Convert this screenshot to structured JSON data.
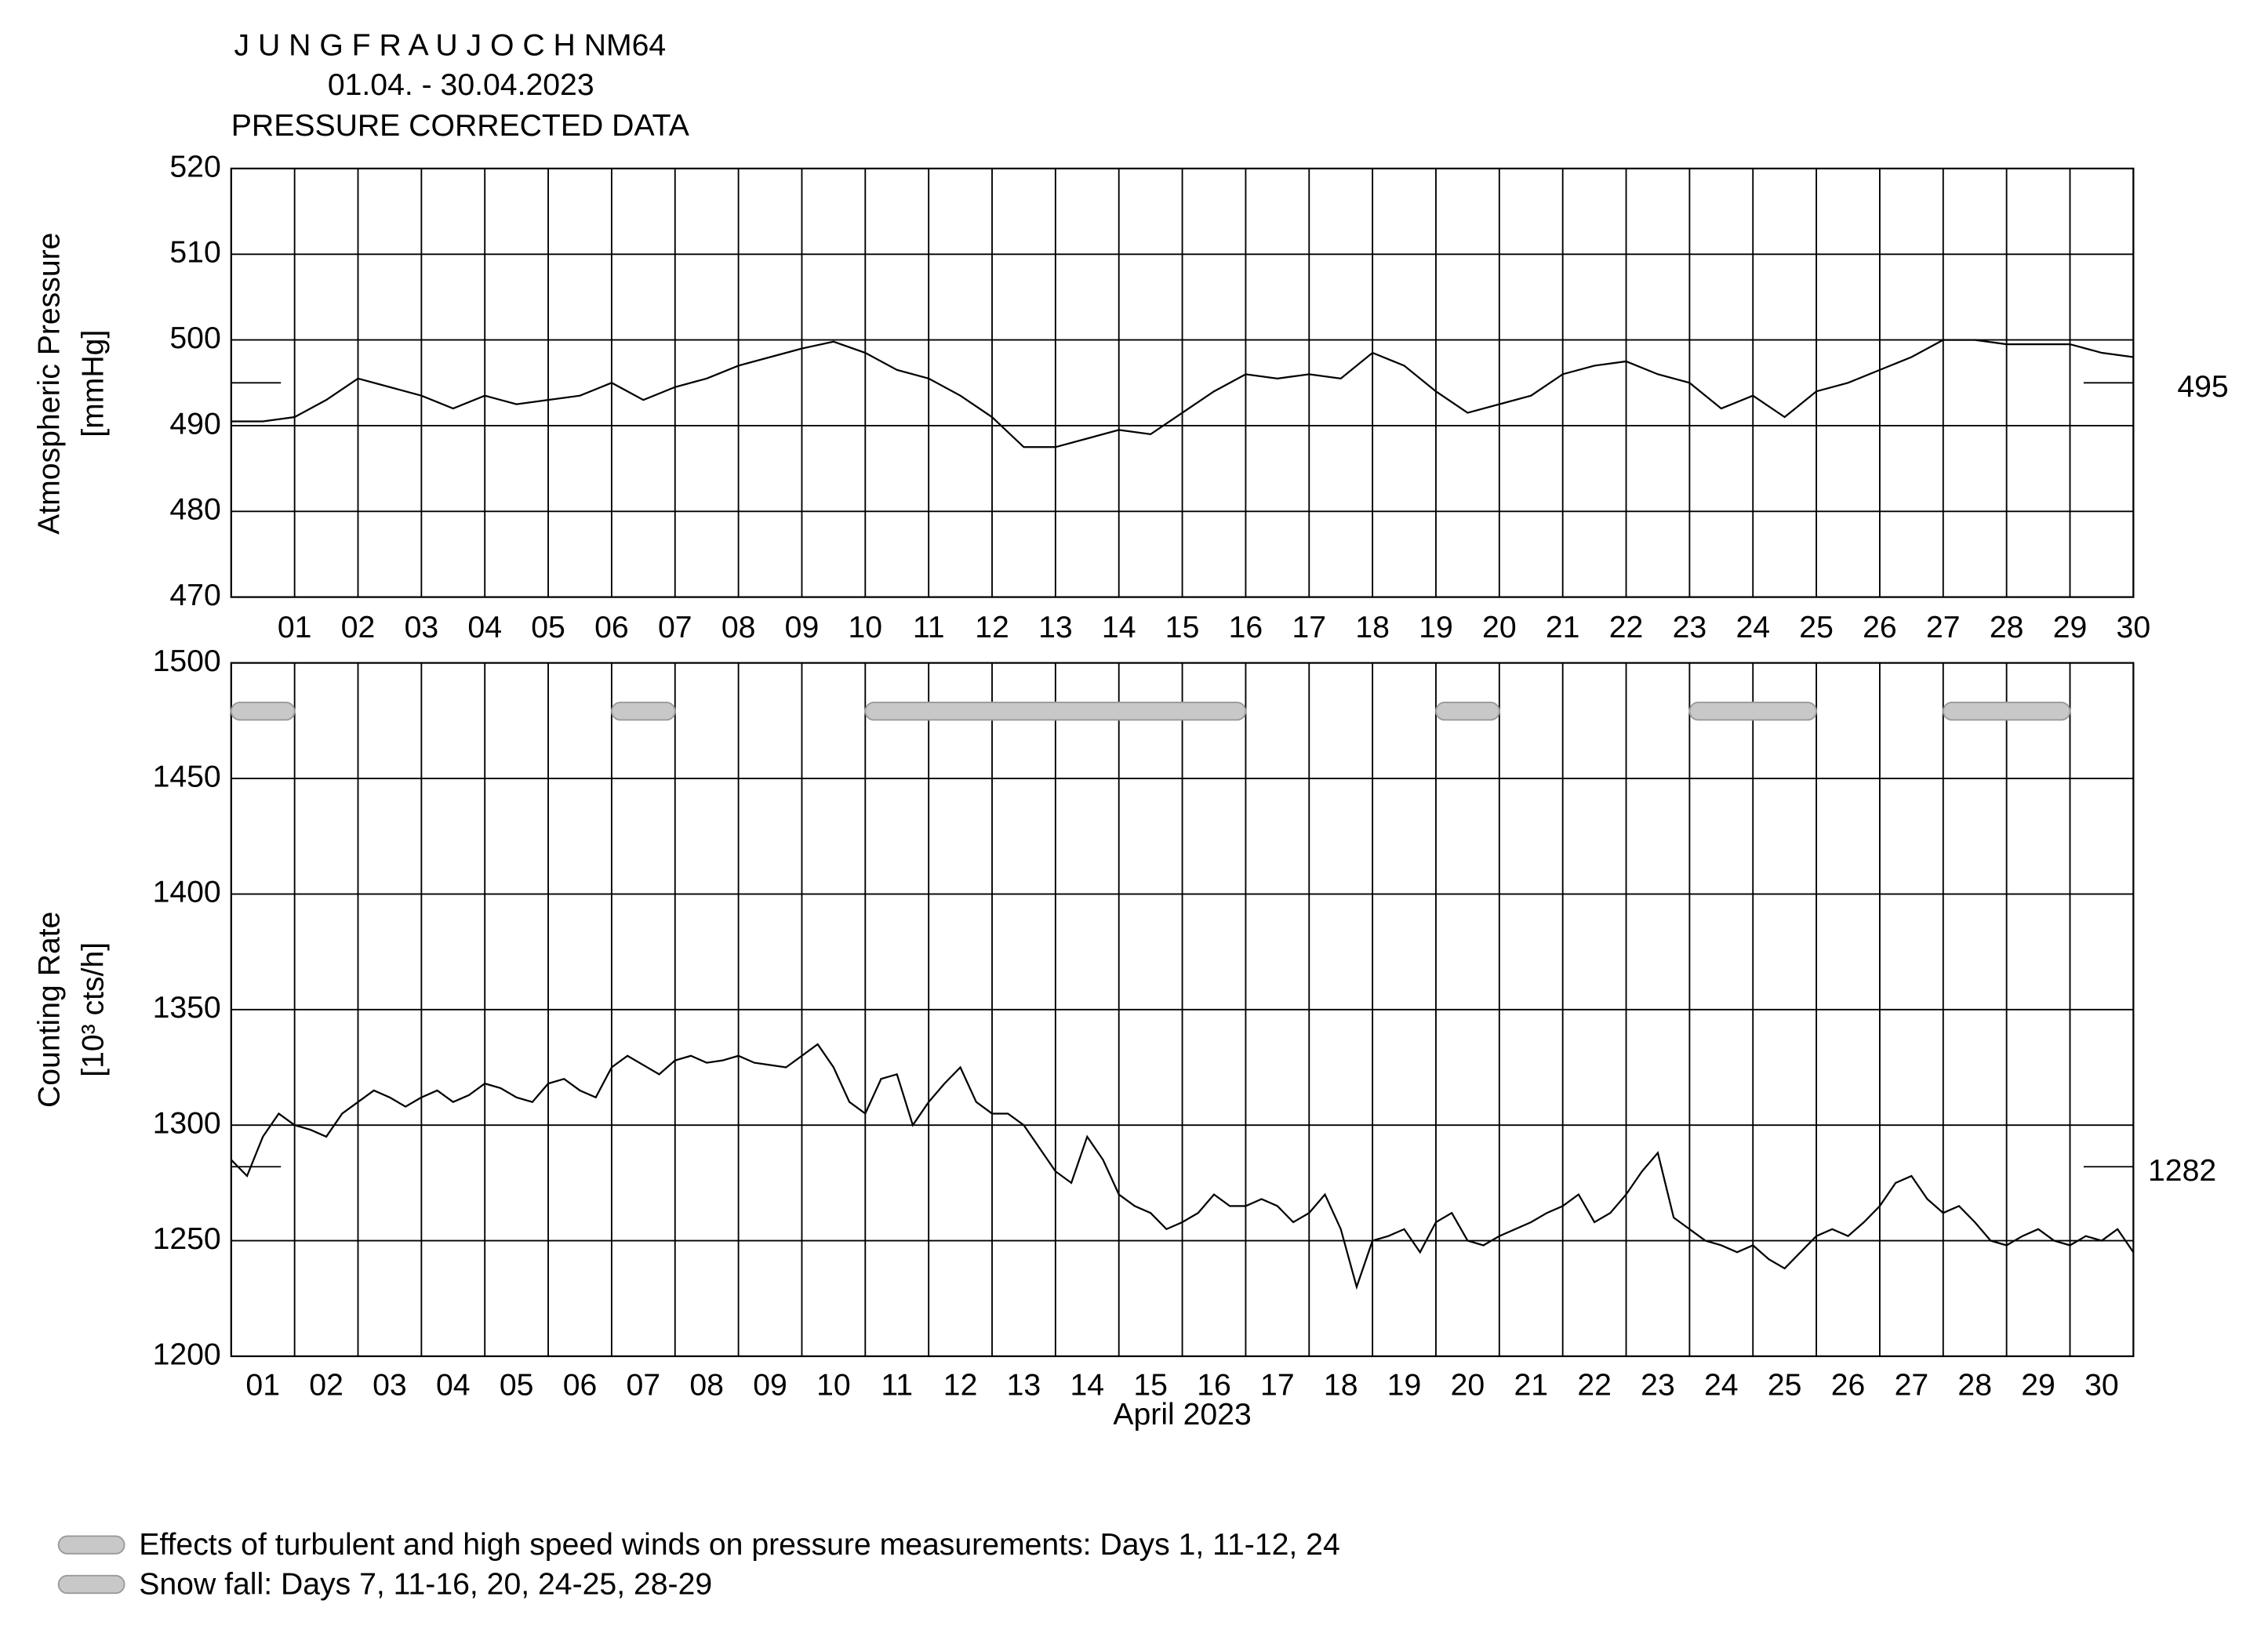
{
  "chart_data": [
    {
      "type": "line",
      "title": [
        "J U N G F R A U J O C H  NM64",
        "01.04. - 30.04.2023",
        "PRESSURE CORRECTED DATA"
      ],
      "ylabel": [
        "Atmospheric Pressure",
        "[mmHg]"
      ],
      "color": "#000000",
      "grid": true,
      "xlim": [
        0,
        30
      ],
      "ylim": [
        470,
        520
      ],
      "yticks": [
        470,
        480,
        490,
        500,
        510,
        520
      ],
      "xticks": [
        {
          "value": 1,
          "label": "01"
        },
        {
          "value": 2,
          "label": "02"
        },
        {
          "value": 3,
          "label": "03"
        },
        {
          "value": 4,
          "label": "04"
        },
        {
          "value": 5,
          "label": "05"
        },
        {
          "value": 6,
          "label": "06"
        },
        {
          "value": 7,
          "label": "07"
        },
        {
          "value": 8,
          "label": "08"
        },
        {
          "value": 9,
          "label": "09"
        },
        {
          "value": 10,
          "label": "10"
        },
        {
          "value": 11,
          "label": "11"
        },
        {
          "value": 12,
          "label": "12"
        },
        {
          "value": 13,
          "label": "13"
        },
        {
          "value": 14,
          "label": "14"
        },
        {
          "value": 15,
          "label": "15"
        },
        {
          "value": 16,
          "label": "16"
        },
        {
          "value": 17,
          "label": "17"
        },
        {
          "value": 18,
          "label": "18"
        },
        {
          "value": 19,
          "label": "19"
        },
        {
          "value": 20,
          "label": "20"
        },
        {
          "value": 21,
          "label": "21"
        },
        {
          "value": 22,
          "label": "22"
        },
        {
          "value": 23,
          "label": "23"
        },
        {
          "value": 24,
          "label": "24"
        },
        {
          "value": 25,
          "label": "25"
        },
        {
          "value": 26,
          "label": "26"
        },
        {
          "value": 27,
          "label": "27"
        },
        {
          "value": 28,
          "label": "28"
        },
        {
          "value": 29,
          "label": "29"
        },
        {
          "value": 30,
          "label": "30"
        }
      ],
      "reference": 495,
      "x": [
        0,
        0.5,
        1,
        1.5,
        2,
        2.5,
        3,
        3.5,
        4,
        4.5,
        5,
        5.5,
        6,
        6.5,
        7,
        7.5,
        8,
        8.5,
        9,
        9.5,
        10,
        10.5,
        11,
        11.5,
        12,
        12.5,
        13,
        13.5,
        14,
        14.5,
        15,
        15.5,
        16,
        16.5,
        17,
        17.5,
        18,
        18.5,
        19,
        19.5,
        20,
        20.5,
        21,
        21.5,
        22,
        22.5,
        23,
        23.5,
        24,
        24.5,
        25,
        25.5,
        26,
        26.5,
        27,
        27.5,
        28,
        28.5,
        29,
        29.5,
        30
      ],
      "values": [
        490.5,
        490.5,
        491,
        493,
        495.5,
        494.5,
        493.5,
        492,
        493.5,
        492.5,
        493,
        493.5,
        495,
        493,
        494.5,
        495.5,
        497,
        498,
        499,
        499.8,
        498.5,
        496.5,
        495.5,
        493.5,
        491,
        487.5,
        487.5,
        488.5,
        489.5,
        489,
        491.5,
        494,
        496,
        495.5,
        496,
        495.5,
        498.5,
        497,
        494,
        491.5,
        492.5,
        493.5,
        496,
        497,
        497.5,
        496,
        495,
        492,
        493.5,
        491,
        494,
        495,
        496.5,
        498,
        500,
        500,
        499.5,
        499.5,
        499.5,
        498.5,
        498
      ]
    },
    {
      "type": "line",
      "ylabel": [
        "Counting Rate",
        "[10³ cts/h]"
      ],
      "xlabel": "April 2023",
      "color": "#000000",
      "grid": true,
      "xlim": [
        0,
        30
      ],
      "ylim": [
        1200,
        1500
      ],
      "yticks": [
        1200,
        1250,
        1300,
        1350,
        1400,
        1450,
        1500
      ],
      "xticks": [
        {
          "value": 0.5,
          "label": "01"
        },
        {
          "value": 1.5,
          "label": "02"
        },
        {
          "value": 2.5,
          "label": "03"
        },
        {
          "value": 3.5,
          "label": "04"
        },
        {
          "value": 4.5,
          "label": "05"
        },
        {
          "value": 5.5,
          "label": "06"
        },
        {
          "value": 6.5,
          "label": "07"
        },
        {
          "value": 7.5,
          "label": "08"
        },
        {
          "value": 8.5,
          "label": "09"
        },
        {
          "value": 9.5,
          "label": "10"
        },
        {
          "value": 10.5,
          "label": "11"
        },
        {
          "value": 11.5,
          "label": "12"
        },
        {
          "value": 12.5,
          "label": "13"
        },
        {
          "value": 13.5,
          "label": "14"
        },
        {
          "value": 14.5,
          "label": "15"
        },
        {
          "value": 15.5,
          "label": "16"
        },
        {
          "value": 16.5,
          "label": "17"
        },
        {
          "value": 17.5,
          "label": "18"
        },
        {
          "value": 18.5,
          "label": "19"
        },
        {
          "value": 19.5,
          "label": "20"
        },
        {
          "value": 20.5,
          "label": "21"
        },
        {
          "value": 21.5,
          "label": "22"
        },
        {
          "value": 22.5,
          "label": "23"
        },
        {
          "value": 23.5,
          "label": "24"
        },
        {
          "value": 24.5,
          "label": "25"
        },
        {
          "value": 25.5,
          "label": "26"
        },
        {
          "value": 26.5,
          "label": "27"
        },
        {
          "value": 27.5,
          "label": "28"
        },
        {
          "value": 28.5,
          "label": "29"
        },
        {
          "value": 29.5,
          "label": "30"
        }
      ],
      "xgrid": [
        1,
        2,
        3,
        4,
        5,
        6,
        7,
        8,
        9,
        10,
        11,
        12,
        13,
        14,
        15,
        16,
        17,
        18,
        19,
        20,
        21,
        22,
        23,
        24,
        25,
        26,
        27,
        28,
        29
      ],
      "reference": 1282,
      "bands": [
        [
          0,
          1
        ],
        [
          6,
          7
        ],
        [
          10,
          16
        ],
        [
          19,
          20
        ],
        [
          23,
          25
        ],
        [
          27,
          29
        ]
      ],
      "legend": [
        "Effects of turbulent and high speed winds on pressure measurements: Days 1, 11-12, 24",
        "Snow fall: Days 7, 11-16, 20, 24-25, 28-29"
      ],
      "x": [
        0,
        0.25,
        0.5,
        0.75,
        1,
        1.25,
        1.5,
        1.75,
        2,
        2.25,
        2.5,
        2.75,
        3,
        3.25,
        3.5,
        3.75,
        4,
        4.25,
        4.5,
        4.75,
        5,
        5.25,
        5.5,
        5.75,
        6,
        6.25,
        6.5,
        6.75,
        7,
        7.25,
        7.5,
        7.75,
        8,
        8.25,
        8.5,
        8.75,
        9,
        9.25,
        9.5,
        9.75,
        10,
        10.25,
        10.5,
        10.75,
        11,
        11.25,
        11.5,
        11.75,
        12,
        12.25,
        12.5,
        12.75,
        13,
        13.25,
        13.5,
        13.75,
        14,
        14.25,
        14.5,
        14.75,
        15,
        15.25,
        15.5,
        15.75,
        16,
        16.25,
        16.5,
        16.75,
        17,
        17.25,
        17.5,
        17.75,
        18,
        18.25,
        18.5,
        18.75,
        19,
        19.25,
        19.5,
        19.75,
        20,
        20.25,
        20.5,
        20.75,
        21,
        21.25,
        21.5,
        21.75,
        22,
        22.25,
        22.5,
        22.75,
        23,
        23.25,
        23.5,
        23.75,
        24,
        24.25,
        24.5,
        24.75,
        25,
        25.25,
        25.5,
        25.75,
        26,
        26.25,
        26.5,
        26.75,
        27,
        27.25,
        27.5,
        27.75,
        28,
        28.25,
        28.5,
        28.75,
        29,
        29.25,
        29.5,
        29.75,
        30
      ],
      "values": [
        1285,
        1278,
        1295,
        1305,
        1300,
        1298,
        1295,
        1305,
        1310,
        1315,
        1312,
        1308,
        1312,
        1315,
        1310,
        1313,
        1318,
        1316,
        1312,
        1310,
        1318,
        1320,
        1315,
        1312,
        1325,
        1330,
        1326,
        1322,
        1328,
        1330,
        1327,
        1328,
        1330,
        1327,
        1326,
        1325,
        1330,
        1335,
        1325,
        1310,
        1305,
        1320,
        1322,
        1300,
        1310,
        1318,
        1325,
        1310,
        1305,
        1305,
        1300,
        1290,
        1280,
        1275,
        1295,
        1285,
        1270,
        1265,
        1262,
        1255,
        1258,
        1262,
        1270,
        1265,
        1265,
        1268,
        1265,
        1258,
        1262,
        1270,
        1255,
        1230,
        1250,
        1252,
        1255,
        1245,
        1258,
        1262,
        1250,
        1248,
        1252,
        1255,
        1258,
        1262,
        1265,
        1270,
        1258,
        1262,
        1270,
        1280,
        1288,
        1260,
        1255,
        1250,
        1248,
        1245,
        1248,
        1242,
        1238,
        1245,
        1252,
        1255,
        1252,
        1258,
        1265,
        1275,
        1278,
        1268,
        1262,
        1265,
        1258,
        1250,
        1248,
        1252,
        1255,
        1250,
        1248,
        1252,
        1250,
        1255,
        1245
      ]
    }
  ]
}
